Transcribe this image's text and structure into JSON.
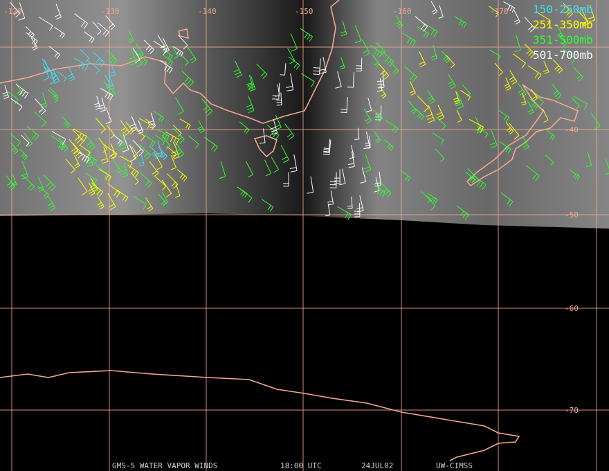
{
  "longitude_labels": [
    "-120",
    "-130",
    "-140",
    "-150",
    "-160",
    "-170"
  ],
  "latitude_labels": [
    "-40",
    "-50",
    "-60",
    "-70"
  ],
  "legend": [
    "150-250mb",
    "251-350mb",
    "351-500mb",
    "501-700mb"
  ],
  "footer": [
    "GMS-5 WATER VAPOR WINDS",
    "18:00 UTC",
    "24JUL02",
    "UW-CIMSS"
  ]
}
